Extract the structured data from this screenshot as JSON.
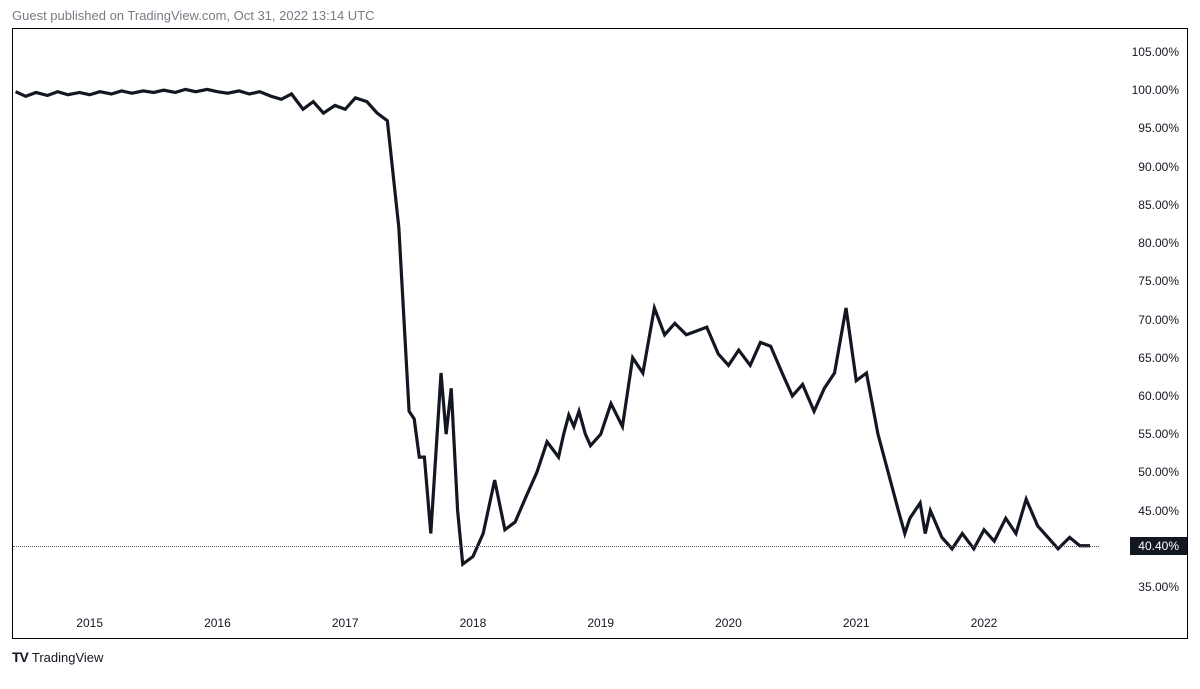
{
  "header": {
    "text": "Guest published on TradingView.com, Oct 31, 2022 13:14 UTC"
  },
  "chart": {
    "type": "line",
    "background_color": "#ffffff",
    "border_color": "#000000",
    "line_color": "#131722",
    "line_width": 2,
    "dotted_line_color": "#58585a",
    "ylim": [
      32,
      108
    ],
    "y_ticks": [
      35.0,
      40.0,
      45.0,
      50.0,
      55.0,
      60.0,
      65.0,
      70.0,
      75.0,
      80.0,
      85.0,
      90.0,
      95.0,
      100.0,
      105.0
    ],
    "y_tick_format": "%.2f%%",
    "x_ticks": [
      "2015",
      "2016",
      "2017",
      "2018",
      "2019",
      "2020",
      "2021",
      "2022"
    ],
    "x_range": [
      2014.4,
      2022.9
    ],
    "current_value": 40.4,
    "current_label": "40.40%",
    "badge_bg": "#131722",
    "badge_fg": "#ffffff",
    "text_color": "#131722",
    "header_color": "#787b86",
    "tick_fontsize": 12,
    "series": [
      {
        "x": 2014.42,
        "y": 99.8
      },
      {
        "x": 2014.5,
        "y": 99.2
      },
      {
        "x": 2014.58,
        "y": 99.7
      },
      {
        "x": 2014.67,
        "y": 99.3
      },
      {
        "x": 2014.75,
        "y": 99.8
      },
      {
        "x": 2014.83,
        "y": 99.4
      },
      {
        "x": 2014.92,
        "y": 99.7
      },
      {
        "x": 2015.0,
        "y": 99.4
      },
      {
        "x": 2015.08,
        "y": 99.8
      },
      {
        "x": 2015.17,
        "y": 99.5
      },
      {
        "x": 2015.25,
        "y": 99.9
      },
      {
        "x": 2015.33,
        "y": 99.6
      },
      {
        "x": 2015.42,
        "y": 99.9
      },
      {
        "x": 2015.5,
        "y": 99.7
      },
      {
        "x": 2015.58,
        "y": 100.0
      },
      {
        "x": 2015.67,
        "y": 99.7
      },
      {
        "x": 2015.75,
        "y": 100.1
      },
      {
        "x": 2015.83,
        "y": 99.8
      },
      {
        "x": 2015.92,
        "y": 100.1
      },
      {
        "x": 2016.0,
        "y": 99.8
      },
      {
        "x": 2016.08,
        "y": 99.6
      },
      {
        "x": 2016.17,
        "y": 99.9
      },
      {
        "x": 2016.25,
        "y": 99.5
      },
      {
        "x": 2016.33,
        "y": 99.8
      },
      {
        "x": 2016.42,
        "y": 99.2
      },
      {
        "x": 2016.5,
        "y": 98.8
      },
      {
        "x": 2016.58,
        "y": 99.5
      },
      {
        "x": 2016.67,
        "y": 97.5
      },
      {
        "x": 2016.75,
        "y": 98.5
      },
      {
        "x": 2016.83,
        "y": 97.0
      },
      {
        "x": 2016.92,
        "y": 98.0
      },
      {
        "x": 2017.0,
        "y": 97.5
      },
      {
        "x": 2017.08,
        "y": 99.0
      },
      {
        "x": 2017.17,
        "y": 98.5
      },
      {
        "x": 2017.25,
        "y": 97.0
      },
      {
        "x": 2017.33,
        "y": 96.0
      },
      {
        "x": 2017.42,
        "y": 82.0
      },
      {
        "x": 2017.46,
        "y": 70.0
      },
      {
        "x": 2017.5,
        "y": 58.0
      },
      {
        "x": 2017.54,
        "y": 57.0
      },
      {
        "x": 2017.58,
        "y": 52.0
      },
      {
        "x": 2017.62,
        "y": 52.0
      },
      {
        "x": 2017.67,
        "y": 42.0
      },
      {
        "x": 2017.75,
        "y": 63.0
      },
      {
        "x": 2017.79,
        "y": 55.0
      },
      {
        "x": 2017.83,
        "y": 61.0
      },
      {
        "x": 2017.88,
        "y": 45.0
      },
      {
        "x": 2017.92,
        "y": 38.0
      },
      {
        "x": 2018.0,
        "y": 39.0
      },
      {
        "x": 2018.08,
        "y": 42.0
      },
      {
        "x": 2018.17,
        "y": 49.0
      },
      {
        "x": 2018.25,
        "y": 42.5
      },
      {
        "x": 2018.33,
        "y": 43.5
      },
      {
        "x": 2018.42,
        "y": 47.0
      },
      {
        "x": 2018.5,
        "y": 50.0
      },
      {
        "x": 2018.58,
        "y": 54.0
      },
      {
        "x": 2018.67,
        "y": 52.0
      },
      {
        "x": 2018.71,
        "y": 55.0
      },
      {
        "x": 2018.75,
        "y": 57.5
      },
      {
        "x": 2018.79,
        "y": 56.0
      },
      {
        "x": 2018.83,
        "y": 58.0
      },
      {
        "x": 2018.88,
        "y": 55.0
      },
      {
        "x": 2018.92,
        "y": 53.5
      },
      {
        "x": 2019.0,
        "y": 55.0
      },
      {
        "x": 2019.08,
        "y": 59.0
      },
      {
        "x": 2019.17,
        "y": 56.0
      },
      {
        "x": 2019.25,
        "y": 65.0
      },
      {
        "x": 2019.33,
        "y": 63.0
      },
      {
        "x": 2019.42,
        "y": 71.5
      },
      {
        "x": 2019.5,
        "y": 68.0
      },
      {
        "x": 2019.58,
        "y": 69.5
      },
      {
        "x": 2019.67,
        "y": 68.0
      },
      {
        "x": 2019.75,
        "y": 68.5
      },
      {
        "x": 2019.83,
        "y": 69.0
      },
      {
        "x": 2019.92,
        "y": 65.5
      },
      {
        "x": 2020.0,
        "y": 64.0
      },
      {
        "x": 2020.08,
        "y": 66.0
      },
      {
        "x": 2020.17,
        "y": 64.0
      },
      {
        "x": 2020.25,
        "y": 67.0
      },
      {
        "x": 2020.33,
        "y": 66.5
      },
      {
        "x": 2020.42,
        "y": 63.0
      },
      {
        "x": 2020.5,
        "y": 60.0
      },
      {
        "x": 2020.58,
        "y": 61.5
      },
      {
        "x": 2020.67,
        "y": 58.0
      },
      {
        "x": 2020.75,
        "y": 61.0
      },
      {
        "x": 2020.83,
        "y": 63.0
      },
      {
        "x": 2020.92,
        "y": 71.5
      },
      {
        "x": 2021.0,
        "y": 62.0
      },
      {
        "x": 2021.08,
        "y": 63.0
      },
      {
        "x": 2021.17,
        "y": 55.0
      },
      {
        "x": 2021.25,
        "y": 50.0
      },
      {
        "x": 2021.33,
        "y": 45.0
      },
      {
        "x": 2021.38,
        "y": 42.0
      },
      {
        "x": 2021.42,
        "y": 44.0
      },
      {
        "x": 2021.5,
        "y": 46.0
      },
      {
        "x": 2021.54,
        "y": 42.0
      },
      {
        "x": 2021.58,
        "y": 45.0
      },
      {
        "x": 2021.67,
        "y": 41.5
      },
      {
        "x": 2021.75,
        "y": 40.0
      },
      {
        "x": 2021.83,
        "y": 42.0
      },
      {
        "x": 2021.92,
        "y": 40.0
      },
      {
        "x": 2022.0,
        "y": 42.5
      },
      {
        "x": 2022.08,
        "y": 41.0
      },
      {
        "x": 2022.17,
        "y": 44.0
      },
      {
        "x": 2022.25,
        "y": 42.0
      },
      {
        "x": 2022.33,
        "y": 46.5
      },
      {
        "x": 2022.42,
        "y": 43.0
      },
      {
        "x": 2022.5,
        "y": 41.5
      },
      {
        "x": 2022.58,
        "y": 40.0
      },
      {
        "x": 2022.67,
        "y": 41.5
      },
      {
        "x": 2022.75,
        "y": 40.4
      },
      {
        "x": 2022.83,
        "y": 40.4
      }
    ]
  },
  "footer": {
    "logo_text": "TV",
    "brand_text": "TradingView"
  }
}
